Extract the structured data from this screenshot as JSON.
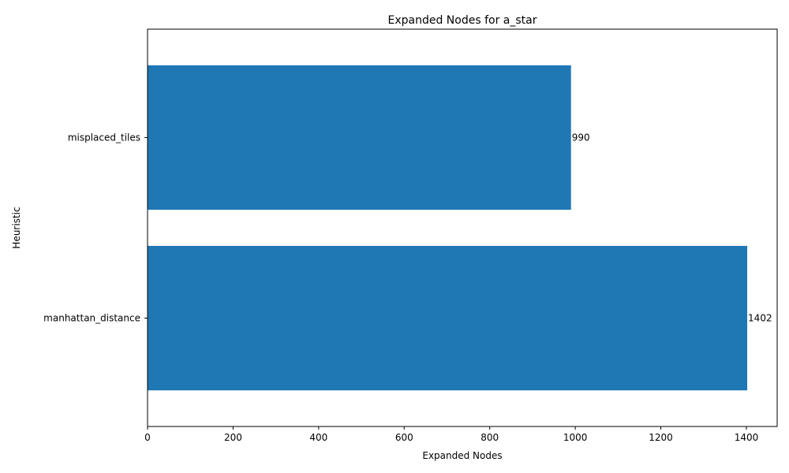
{
  "chart_data": {
    "type": "bar",
    "orientation": "horizontal",
    "title": "Expanded Nodes for a_star",
    "xlabel": "Expanded Nodes",
    "ylabel": "Heuristic",
    "categories": [
      "manhattan_distance",
      "misplaced_tiles"
    ],
    "values": [
      1402,
      990
    ],
    "value_labels": [
      "1402",
      "990"
    ],
    "xlim": [
      0,
      1472
    ],
    "xticks": [
      0,
      200,
      400,
      600,
      800,
      1000,
      1200,
      1400
    ],
    "xtick_labels": [
      "0",
      "200",
      "400",
      "600",
      "800",
      "1000",
      "1200",
      "1400"
    ],
    "bar_color": "#1f77b4",
    "grid": false,
    "legend": "none"
  }
}
